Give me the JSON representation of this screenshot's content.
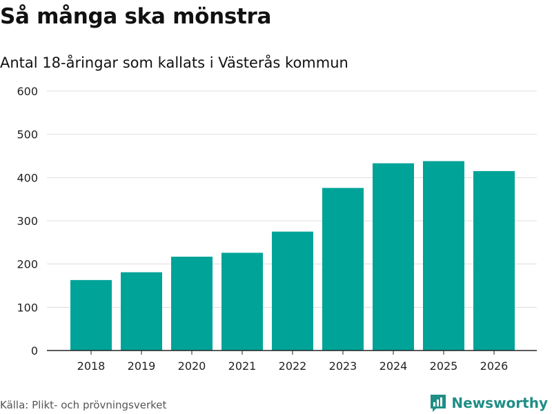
{
  "title": "Så många ska mönstra",
  "source": "Källa: Plikt- och prövningsverket",
  "brand": {
    "name": "Newsworthy",
    "icon": "newsworthy-logo-icon"
  },
  "colors": {
    "bar": "#00a398",
    "grid": "#dddddd",
    "axis": "#222222",
    "brand": "#1f8e86"
  },
  "chart_data": {
    "type": "bar",
    "title": "Så många ska mönstra",
    "subtitle": "Antal 18-åringar som kallats i Västerås kommun",
    "xlabel": "",
    "ylabel": "",
    "categories": [
      "2018",
      "2019",
      "2020",
      "2021",
      "2022",
      "2023",
      "2024",
      "2025",
      "2026"
    ],
    "values": [
      163,
      181,
      217,
      226,
      275,
      376,
      433,
      438,
      415
    ],
    "ylim": [
      0,
      600
    ],
    "yticks": [
      0,
      100,
      200,
      300,
      400,
      500,
      600
    ],
    "grid": true,
    "legend": "none"
  }
}
